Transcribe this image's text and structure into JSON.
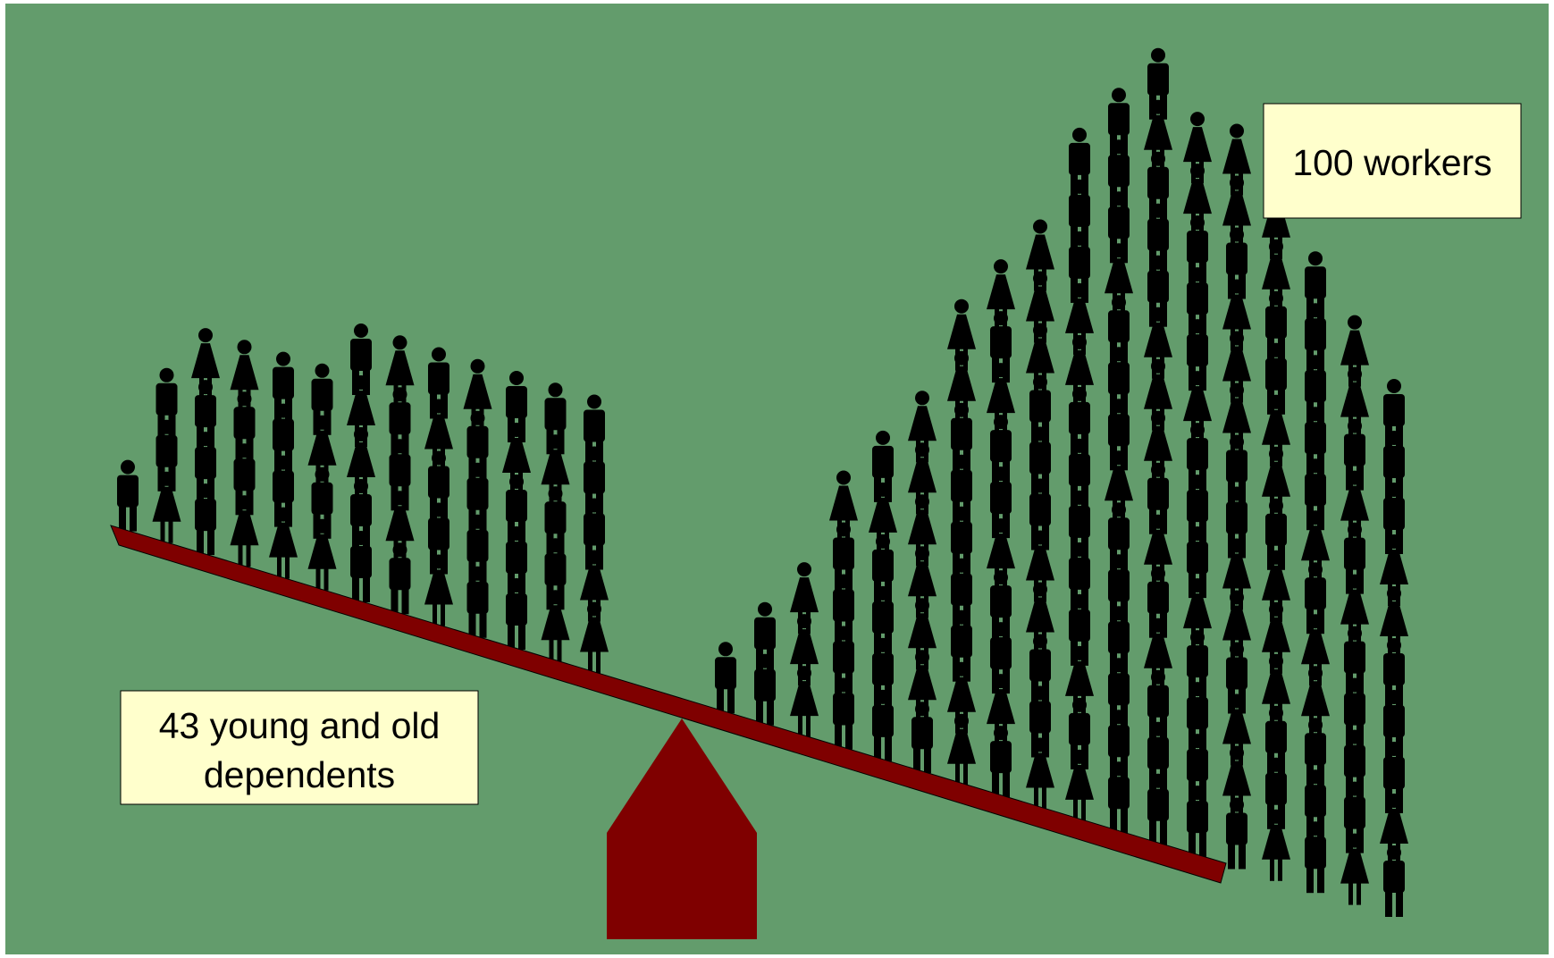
{
  "workers_label": "100 workers",
  "dependents_label": [
    "43 young and old",
    "dependents"
  ]
}
